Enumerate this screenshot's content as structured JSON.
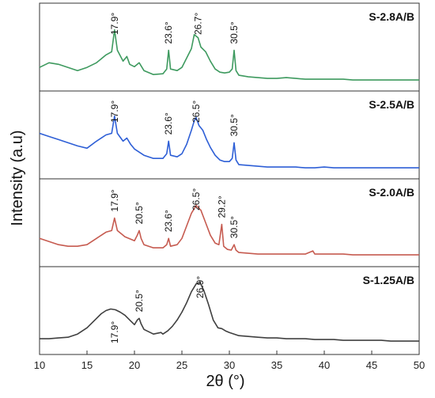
{
  "chart_data": {
    "type": "line",
    "title": "",
    "xlabel": "2θ (°)",
    "ylabel": "Intensity (a.u)",
    "xlim": [
      10,
      50
    ],
    "xticks": [
      10,
      15,
      20,
      25,
      30,
      35,
      40,
      45,
      50
    ],
    "grid": false,
    "series": [
      {
        "name": "S-2.8A/B",
        "color": "#3e9a5f",
        "x": [
          10,
          11,
          12,
          13,
          14,
          15,
          16,
          17,
          17.6,
          17.9,
          18.2,
          18.8,
          19.2,
          19.5,
          20,
          20.5,
          21,
          22,
          23,
          23.4,
          23.6,
          23.8,
          24.5,
          25,
          25.5,
          26,
          26.3,
          26.7,
          27,
          27.5,
          28,
          28.5,
          29,
          29.5,
          30,
          30.3,
          30.5,
          30.7,
          31,
          32,
          33,
          34,
          35,
          36,
          37,
          38,
          39,
          40,
          41,
          42,
          43,
          44,
          45,
          46,
          47,
          48,
          49,
          50
        ],
        "y": [
          0.24,
          0.3,
          0.28,
          0.24,
          0.2,
          0.24,
          0.3,
          0.4,
          0.44,
          0.72,
          0.46,
          0.32,
          0.38,
          0.28,
          0.25,
          0.3,
          0.2,
          0.15,
          0.16,
          0.22,
          0.46,
          0.22,
          0.2,
          0.24,
          0.36,
          0.48,
          0.66,
          0.62,
          0.5,
          0.44,
          0.32,
          0.22,
          0.18,
          0.17,
          0.18,
          0.22,
          0.46,
          0.2,
          0.14,
          0.12,
          0.11,
          0.1,
          0.1,
          0.11,
          0.1,
          0.09,
          0.09,
          0.09,
          0.09,
          0.09,
          0.08,
          0.08,
          0.08,
          0.08,
          0.08,
          0.08,
          0.08,
          0.08
        ],
        "label": "S-2.8A/B",
        "peaks": [
          {
            "x": 17.9,
            "label": "17.9°"
          },
          {
            "x": 23.6,
            "label": "23.6°"
          },
          {
            "x": 26.7,
            "label": "26.7°"
          },
          {
            "x": 30.5,
            "label": "30.5°"
          }
        ]
      },
      {
        "name": "S-2.5A/B",
        "color": "#2e5fd6",
        "x": [
          10,
          11,
          12,
          13,
          14,
          15,
          16,
          17,
          17.6,
          17.9,
          18.2,
          18.8,
          19.2,
          19.6,
          20,
          21,
          22,
          23,
          23.4,
          23.6,
          23.8,
          24.5,
          25,
          25.5,
          26,
          26.3,
          26.5,
          26.8,
          27.2,
          27.6,
          28,
          28.5,
          29,
          29.5,
          30,
          30.3,
          30.5,
          30.7,
          31,
          32,
          33,
          34,
          35,
          36,
          37,
          38,
          39,
          40,
          41,
          42,
          43,
          44,
          45,
          46,
          47,
          48,
          49,
          50
        ],
        "y": [
          0.52,
          0.48,
          0.44,
          0.4,
          0.36,
          0.33,
          0.42,
          0.5,
          0.52,
          0.74,
          0.52,
          0.42,
          0.46,
          0.38,
          0.32,
          0.24,
          0.2,
          0.2,
          0.26,
          0.42,
          0.24,
          0.22,
          0.26,
          0.38,
          0.56,
          0.68,
          0.72,
          0.62,
          0.56,
          0.44,
          0.34,
          0.24,
          0.18,
          0.16,
          0.16,
          0.2,
          0.4,
          0.18,
          0.12,
          0.11,
          0.1,
          0.09,
          0.09,
          0.09,
          0.09,
          0.08,
          0.08,
          0.09,
          0.08,
          0.08,
          0.08,
          0.08,
          0.08,
          0.08,
          0.08,
          0.08,
          0.08,
          0.08
        ],
        "label": "S-2.5A/B",
        "peaks": [
          {
            "x": 17.9,
            "label": "17.9°"
          },
          {
            "x": 23.6,
            "label": "23.6°"
          },
          {
            "x": 26.5,
            "label": "26.5°"
          },
          {
            "x": 30.5,
            "label": "30.5°"
          }
        ]
      },
      {
        "name": "S-2.0A/B",
        "color": "#c65b50",
        "x": [
          10,
          11,
          12,
          13,
          14,
          15,
          16,
          17,
          17.6,
          17.9,
          18.2,
          19,
          20,
          20.3,
          20.5,
          20.7,
          21,
          22,
          23,
          23.4,
          23.6,
          23.8,
          24.5,
          25,
          25.5,
          26,
          26.5,
          27,
          27.5,
          28,
          28.5,
          28.9,
          29.2,
          29.4,
          29.8,
          30.2,
          30.5,
          30.7,
          31,
          32,
          33,
          34,
          35,
          36,
          37,
          38,
          38.8,
          39,
          40,
          41,
          42,
          43,
          44,
          45,
          46,
          47,
          48,
          49,
          50
        ],
        "y": [
          0.3,
          0.26,
          0.22,
          0.2,
          0.2,
          0.22,
          0.3,
          0.38,
          0.4,
          0.56,
          0.4,
          0.32,
          0.27,
          0.34,
          0.4,
          0.3,
          0.22,
          0.18,
          0.18,
          0.22,
          0.3,
          0.2,
          0.22,
          0.3,
          0.46,
          0.62,
          0.72,
          0.66,
          0.5,
          0.34,
          0.24,
          0.22,
          0.48,
          0.2,
          0.16,
          0.15,
          0.22,
          0.15,
          0.12,
          0.11,
          0.1,
          0.1,
          0.1,
          0.1,
          0.1,
          0.1,
          0.14,
          0.1,
          0.1,
          0.1,
          0.1,
          0.09,
          0.09,
          0.09,
          0.09,
          0.09,
          0.09,
          0.09,
          0.09
        ],
        "label": "S-2.0A/B",
        "peaks": [
          {
            "x": 17.9,
            "label": "17.9°"
          },
          {
            "x": 20.5,
            "label": "20.5°"
          },
          {
            "x": 23.6,
            "label": "23.6°"
          },
          {
            "x": 26.5,
            "label": "26.5°"
          },
          {
            "x": 29.2,
            "label": "29.2°"
          },
          {
            "x": 30.5,
            "label": "30.5°"
          }
        ]
      },
      {
        "name": "S-1.25A/B",
        "color": "#404040",
        "x": [
          10,
          11,
          12,
          13,
          14,
          15,
          16,
          16.5,
          17,
          17.5,
          18,
          18.5,
          19,
          19.5,
          20,
          20.3,
          20.5,
          20.7,
          21,
          22,
          22.8,
          23,
          23.5,
          24,
          24.5,
          25,
          25.5,
          26,
          26.5,
          26.9,
          27.3,
          27.8,
          28.3,
          28.8,
          29.2,
          29.6,
          30,
          31,
          32,
          33,
          34,
          35,
          36,
          37,
          38,
          39,
          40,
          41,
          42,
          43,
          44,
          45,
          46,
          47,
          48,
          49,
          50
        ],
        "y": [
          0.14,
          0.14,
          0.15,
          0.16,
          0.2,
          0.28,
          0.4,
          0.46,
          0.5,
          0.52,
          0.51,
          0.48,
          0.44,
          0.38,
          0.32,
          0.38,
          0.4,
          0.33,
          0.26,
          0.2,
          0.22,
          0.2,
          0.24,
          0.3,
          0.38,
          0.48,
          0.6,
          0.74,
          0.84,
          0.86,
          0.76,
          0.58,
          0.38,
          0.28,
          0.27,
          0.24,
          0.22,
          0.18,
          0.17,
          0.16,
          0.15,
          0.15,
          0.14,
          0.14,
          0.14,
          0.13,
          0.13,
          0.13,
          0.12,
          0.12,
          0.12,
          0.12,
          0.12,
          0.11,
          0.11,
          0.11,
          0.11
        ],
        "label": "S-1.25A/B",
        "peaks": [
          {
            "x": 17.9,
            "label": "17.9°"
          },
          {
            "x": 20.5,
            "label": "20.5°"
          },
          {
            "x": 26.9,
            "label": "26.9°"
          }
        ]
      }
    ]
  }
}
